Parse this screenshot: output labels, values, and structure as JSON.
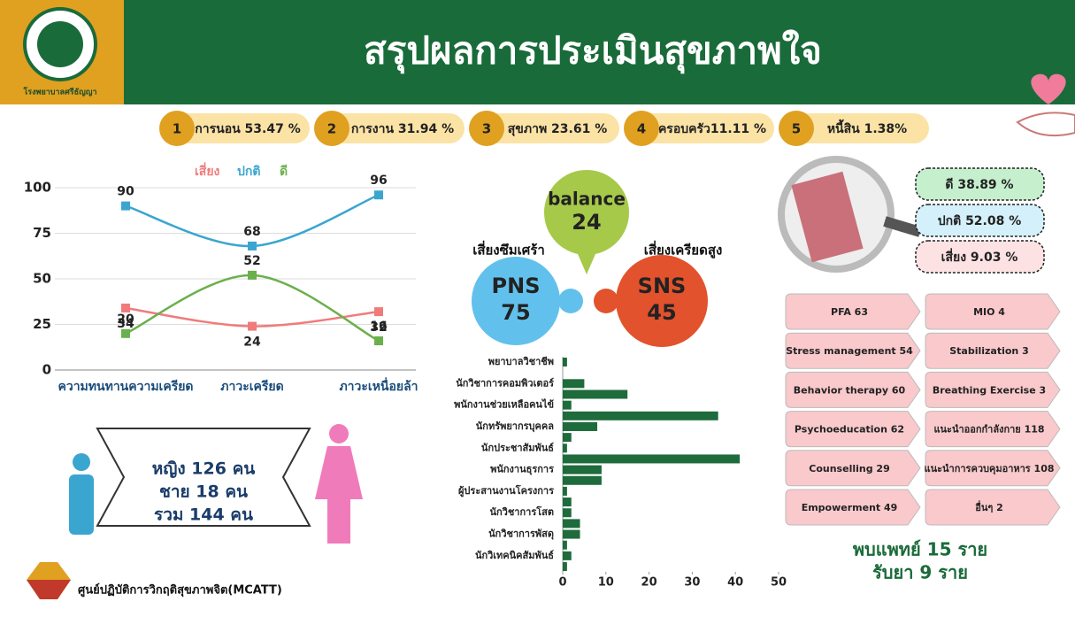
{
  "header": {
    "title": "สรุปผลการประเมินสุขภาพใจ",
    "hospital": "โรงพยาบาลศรีธัญญา"
  },
  "ranking": [
    {
      "rank": 1,
      "label": "การนอน 53.47 %"
    },
    {
      "rank": 2,
      "label": "การงาน 31.94 %"
    },
    {
      "rank": 3,
      "label": "สุขภาพ 23.61 %"
    },
    {
      "rank": 4,
      "label": "ครอบครัว11.11 %"
    },
    {
      "rank": 5,
      "label": "หนี้สิน 1.38%"
    }
  ],
  "chart_data": [
    {
      "type": "line",
      "categories": [
        "ความทนทานความเครียด",
        "ภาวะเครียด",
        "ภาวะเหนื่อยล้า"
      ],
      "series": [
        {
          "name": "เสี่ยง",
          "color": "#f07b7b",
          "values": [
            34,
            24,
            32
          ]
        },
        {
          "name": "ปกติ",
          "color": "#3aa6d0",
          "values": [
            90,
            68,
            96
          ]
        },
        {
          "name": "ดี",
          "color": "#6ab04c",
          "values": [
            20,
            52,
            16
          ]
        }
      ],
      "ylim": [
        0,
        100
      ],
      "yticks": [
        0,
        25,
        50,
        75,
        100
      ],
      "grid": true
    },
    {
      "type": "barh",
      "categories": [
        "พยาบาลวิชาชีพ",
        null,
        "นักวิชาการคอมพิวเตอร์",
        null,
        "พนักงานช่วยเหลือคนไข้",
        null,
        "นักทรัพยากรบุคคล",
        null,
        "นักประชาสัมพันธ์",
        null,
        "พนักงานธุรการ",
        null,
        "ผู้ประสานงานโครงการ",
        null,
        "นักวิชาการโสต",
        null,
        "นักวิชาการพัสดุ",
        null,
        "นักวิเทคนิคสัมพันธ์",
        null
      ],
      "values": [
        1,
        0,
        5,
        15,
        2,
        36,
        8,
        2,
        1,
        41,
        9,
        9,
        1,
        2,
        2,
        4,
        4,
        1,
        2,
        1
      ],
      "color": "#1e6b3c",
      "xlim": [
        0,
        50
      ],
      "xticks": [
        0,
        10,
        20,
        30,
        40,
        50
      ]
    }
  ],
  "bubbles": {
    "balance": {
      "label": "balance",
      "value": 24
    },
    "pns": {
      "caption": "เสี่ยงซึมเศร้า",
      "label": "PNS",
      "value": 75
    },
    "sns": {
      "caption": "เสี่ยงเครียดสูง",
      "label": "SNS",
      "value": 45
    }
  },
  "status": [
    "ดี 38.89 %",
    "ปกติ 52.08 %",
    "เสี่ยง 9.03 %"
  ],
  "gender": [
    "หญิง 126 คน",
    "ชาย 18 คน",
    "รวม 144 คน"
  ],
  "interventions": [
    [
      "PFA 63",
      "MIO 4"
    ],
    [
      "Stress management 54",
      "Stabilization 3"
    ],
    [
      "Behavior therapy 60",
      "Breathing Exercise 3"
    ],
    [
      "Psychoeducation 62",
      "แนะนำออกกำลังกาย 118"
    ],
    [
      "Counselling 29",
      "แนะนำการควบคุมอาหาร 108"
    ],
    [
      "Empowerment 49",
      "อื่นๆ 2"
    ]
  ],
  "outcome": [
    "พบแพทย์ 15 ราย",
    "รับยา 9 ราย"
  ],
  "footer": "ศูนย์ปฏิบัติการวิกฤติสุขภาพจิต(MCATT)"
}
